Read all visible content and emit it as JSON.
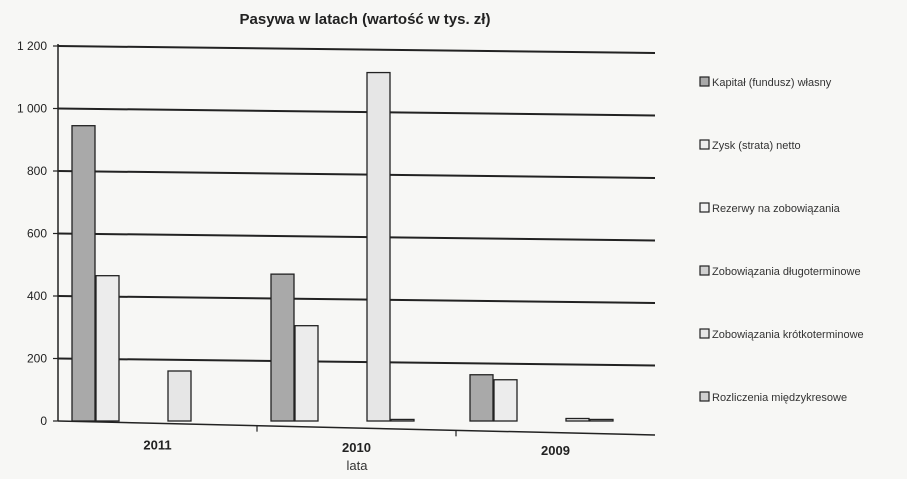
{
  "chart_data": {
    "type": "bar",
    "title": "Pasywa w latach (wartość w tys. zł)",
    "xlabel": "lata",
    "ylabel": "",
    "categories": [
      "2011",
      "2010",
      "2009"
    ],
    "ylim": [
      0,
      1200
    ],
    "yticks": [
      "0",
      "200",
      "400",
      "600",
      "800",
      "1 000",
      "1 200"
    ],
    "ytick_values": [
      0,
      200,
      400,
      600,
      800,
      1000,
      1200
    ],
    "grid": true,
    "legend_position": "right",
    "series": [
      {
        "name": "Kapitał (fundusz) własny",
        "values": [
          945,
          470,
          148
        ],
        "color": "#a9a9a9"
      },
      {
        "name": "Zysk (strata) netto",
        "values": [
          465,
          305,
          132
        ],
        "color": "#ececec"
      },
      {
        "name": "Rezerwy na zobowiązania",
        "values": [
          0,
          0,
          0
        ],
        "color": "#f2f2f2"
      },
      {
        "name": "Zobowiązania długoterminowe",
        "values": [
          0,
          0,
          0
        ],
        "color": "#d0d0d0"
      },
      {
        "name": "Zobowiązania krótkoterminowe",
        "values": [
          160,
          1115,
          8
        ],
        "color": "#e6e6e6"
      },
      {
        "name": "Rozliczenia międzykresowe",
        "values": [
          0,
          5,
          5
        ],
        "color": "#cfcfcf"
      }
    ]
  }
}
